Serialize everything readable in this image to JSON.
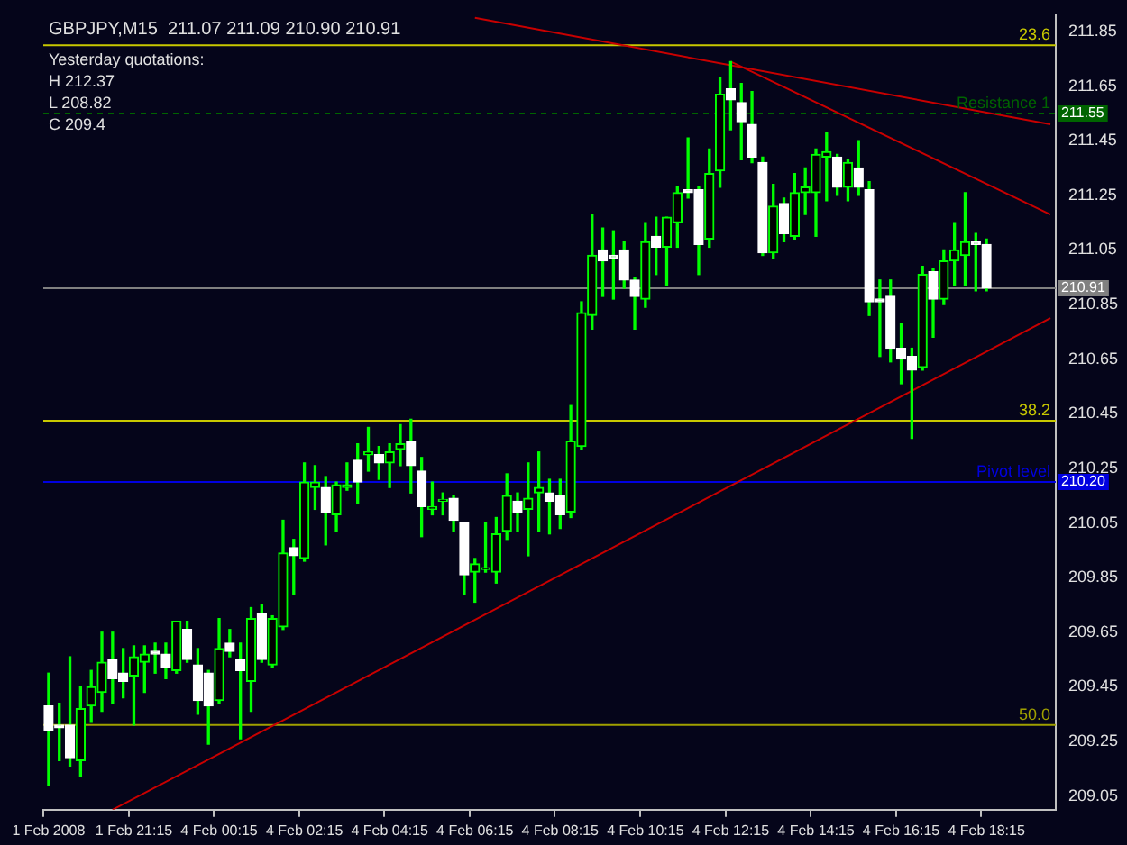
{
  "chart_data": {
    "type": "candlestick",
    "title": "GBPJPY,M15  211.07 211.09 210.90 210.91",
    "color": "#00ff00",
    "categories": [
      "1 Feb 2008",
      null,
      null,
      null,
      null,
      null,
      null,
      null,
      "1 Feb 21:15",
      null,
      null,
      null,
      null,
      null,
      null,
      null,
      "4 Feb 00:15",
      null,
      null,
      null,
      null,
      null,
      null,
      null,
      "4 Feb 02:15",
      null,
      null,
      null,
      null,
      null,
      null,
      null,
      "4 Feb 04:15",
      null,
      null,
      null,
      null,
      null,
      null,
      null,
      "4 Feb 06:15",
      null,
      null,
      null,
      null,
      null,
      null,
      null,
      "4 Feb 08:15",
      null,
      null,
      null,
      null,
      null,
      null,
      null,
      "4 Feb 10:15",
      null,
      null,
      null,
      null,
      null,
      null,
      null,
      "4 Feb 12:15",
      null,
      null,
      null,
      null,
      null,
      null,
      null,
      "4 Feb 14:15",
      null,
      null,
      null,
      null,
      null,
      null,
      null,
      "4 Feb 16:15",
      null,
      null,
      null,
      null,
      null,
      null,
      null,
      "4 Feb 18:15",
      null,
      null,
      null,
      null,
      null,
      null
    ],
    "ohlc": [
      [
        209.38,
        209.5,
        209.09,
        209.29
      ],
      [
        209.31,
        209.39,
        209.18,
        209.3
      ],
      [
        209.31,
        209.56,
        209.16,
        209.19
      ],
      [
        209.18,
        209.45,
        209.12,
        209.37
      ],
      [
        209.38,
        209.51,
        209.32,
        209.45
      ],
      [
        209.43,
        209.65,
        209.36,
        209.54
      ],
      [
        209.55,
        209.65,
        209.39,
        209.48
      ],
      [
        209.5,
        209.59,
        209.41,
        209.47
      ],
      [
        209.49,
        209.6,
        209.31,
        209.56
      ],
      [
        209.54,
        209.6,
        209.43,
        209.57
      ],
      [
        209.58,
        209.61,
        209.5,
        209.57
      ],
      [
        209.57,
        209.61,
        209.48,
        209.52
      ],
      [
        209.51,
        209.69,
        209.5,
        209.69
      ],
      [
        209.66,
        209.69,
        209.54,
        209.55
      ],
      [
        209.53,
        209.59,
        209.35,
        209.4
      ],
      [
        209.5,
        209.51,
        209.24,
        209.38
      ],
      [
        209.4,
        209.7,
        209.39,
        209.59
      ],
      [
        209.61,
        209.66,
        209.56,
        209.58
      ],
      [
        209.55,
        209.61,
        209.26,
        209.51
      ],
      [
        209.47,
        209.74,
        209.36,
        209.7
      ],
      [
        209.72,
        209.75,
        209.54,
        209.55
      ],
      [
        209.53,
        209.71,
        209.52,
        209.7
      ],
      [
        209.67,
        210.06,
        209.66,
        209.94
      ],
      [
        209.96,
        209.99,
        209.79,
        209.93
      ],
      [
        209.92,
        210.27,
        209.91,
        210.2
      ],
      [
        210.18,
        210.26,
        210.1,
        210.2
      ],
      [
        210.18,
        210.22,
        209.97,
        210.09
      ],
      [
        210.08,
        210.2,
        210.02,
        210.19
      ],
      [
        210.18,
        210.27,
        210.17,
        210.19
      ],
      [
        210.28,
        210.34,
        210.12,
        210.2
      ],
      [
        210.3,
        210.4,
        210.24,
        210.31
      ],
      [
        210.3,
        210.33,
        210.21,
        210.27
      ],
      [
        210.27,
        210.34,
        210.18,
        210.31
      ],
      [
        210.32,
        210.41,
        210.26,
        210.34
      ],
      [
        210.35,
        210.43,
        210.16,
        210.26
      ],
      [
        210.24,
        210.29,
        210.0,
        210.11
      ],
      [
        210.1,
        210.2,
        210.08,
        210.11
      ],
      [
        210.13,
        210.16,
        210.08,
        210.13
      ],
      [
        210.14,
        210.15,
        210.02,
        210.06
      ],
      [
        210.05,
        210.05,
        209.79,
        209.86
      ],
      [
        209.87,
        209.92,
        209.76,
        209.9
      ],
      [
        209.88,
        210.05,
        209.87,
        209.88
      ],
      [
        209.87,
        210.07,
        209.83,
        210.01
      ],
      [
        210.02,
        210.23,
        209.99,
        210.15
      ],
      [
        210.13,
        210.16,
        210.02,
        210.09
      ],
      [
        210.1,
        210.27,
        209.93,
        210.14
      ],
      [
        210.16,
        210.31,
        210.02,
        210.18
      ],
      [
        210.16,
        210.21,
        210.01,
        210.13
      ],
      [
        210.15,
        210.21,
        210.03,
        210.08
      ],
      [
        210.09,
        210.48,
        210.07,
        210.35
      ],
      [
        210.33,
        210.86,
        210.32,
        210.82
      ],
      [
        210.81,
        211.18,
        210.76,
        211.03
      ],
      [
        211.05,
        211.13,
        210.88,
        211.01
      ],
      [
        211.03,
        211.12,
        210.87,
        211.02
      ],
      [
        211.05,
        211.08,
        210.91,
        210.94
      ],
      [
        210.94,
        210.95,
        210.76,
        210.88
      ],
      [
        210.87,
        211.15,
        210.84,
        211.08
      ],
      [
        211.1,
        211.17,
        210.96,
        211.06
      ],
      [
        211.06,
        211.17,
        210.92,
        211.17
      ],
      [
        211.15,
        211.28,
        211.06,
        211.26
      ],
      [
        211.27,
        211.46,
        211.24,
        211.26
      ],
      [
        211.27,
        211.28,
        210.96,
        211.07
      ],
      [
        211.09,
        211.42,
        211.06,
        211.33
      ],
      [
        211.34,
        211.68,
        211.28,
        211.62
      ],
      [
        211.64,
        211.74,
        211.49,
        211.6
      ],
      [
        211.59,
        211.66,
        211.38,
        211.52
      ],
      [
        211.51,
        211.63,
        211.37,
        211.39
      ],
      [
        211.37,
        211.39,
        211.03,
        211.04
      ],
      [
        211.04,
        211.29,
        211.02,
        211.21
      ],
      [
        211.22,
        211.24,
        211.08,
        211.11
      ],
      [
        211.1,
        211.33,
        211.09,
        211.26
      ],
      [
        211.26,
        211.35,
        211.18,
        211.28
      ],
      [
        211.26,
        211.42,
        211.1,
        211.4
      ],
      [
        211.39,
        211.48,
        211.23,
        211.41
      ],
      [
        211.39,
        211.4,
        211.25,
        211.28
      ],
      [
        211.28,
        211.38,
        211.23,
        211.37
      ],
      [
        211.35,
        211.45,
        211.25,
        211.28
      ],
      [
        211.27,
        211.3,
        210.81,
        210.86
      ],
      [
        210.87,
        210.94,
        210.66,
        210.86
      ],
      [
        210.88,
        210.94,
        210.64,
        210.69
      ],
      [
        210.69,
        210.78,
        210.56,
        210.65
      ],
      [
        210.66,
        210.69,
        210.36,
        210.61
      ],
      [
        210.62,
        210.99,
        210.61,
        210.96
      ],
      [
        210.97,
        210.98,
        210.73,
        210.87
      ],
      [
        210.87,
        211.05,
        210.85,
        211.01
      ],
      [
        211.01,
        211.15,
        210.92,
        211.05
      ],
      [
        211.03,
        211.26,
        210.92,
        211.08
      ],
      [
        211.08,
        211.11,
        210.9,
        211.07
      ],
      [
        211.07,
        211.09,
        210.9,
        210.91
      ],
      null,
      null,
      null,
      null,
      null,
      null
    ],
    "colors": [
      "#ffffff",
      "#ffffff",
      "#ffffff",
      "#00ff00",
      "#00ff00",
      "#00ff00",
      "#ffffff",
      "#ffffff",
      "#00ff00",
      "#00ff00",
      "#ffffff",
      "#ffffff",
      "#00ff00",
      "#ffffff",
      "#ffffff",
      "#ffffff",
      "#00ff00",
      "#ffffff",
      "#ffffff",
      "#00ff00",
      "#ffffff",
      "#00ff00",
      "#00ff00",
      "#ffffff",
      "#00ff00",
      "#00ff00",
      "#ffffff",
      "#00ff00",
      "#00ff00",
      "#ffffff",
      "#00ff00",
      "#ffffff",
      "#00ff00",
      "#00ff00",
      "#ffffff",
      "#ffffff",
      "#00ff00",
      "#00ff00",
      "#ffffff",
      "#ffffff",
      "#00ff00",
      "#00ff00",
      "#00ff00",
      "#00ff00",
      "#ffffff",
      "#00ff00",
      "#00ff00",
      "#ffffff",
      "#ffffff",
      "#00ff00",
      "#00ff00",
      "#00ff00",
      "#ffffff",
      "#ffffff",
      "#ffffff",
      "#ffffff",
      "#00ff00",
      "#ffffff",
      "#00ff00",
      "#00ff00",
      "#ffffff",
      "#ffffff",
      "#00ff00",
      "#00ff00",
      "#ffffff",
      "#ffffff",
      "#ffffff",
      "#ffffff",
      "#00ff00",
      "#ffffff",
      "#00ff00",
      "#00ff00",
      "#00ff00",
      "#00ff00",
      "#ffffff",
      "#00ff00",
      "#ffffff",
      "#ffffff",
      "#ffffff",
      "#ffffff",
      "#ffffff",
      "#ffffff",
      "#00ff00",
      "#ffffff",
      "#00ff00",
      "#00ff00",
      "#00ff00",
      "#ffffff",
      "#ffffff",
      null,
      null,
      null,
      null,
      null,
      null
    ],
    "series": [
      {
        "type": "line",
        "color": "#c80000",
        "values": [
          null,
          null,
          null,
          null,
          null,
          null,
          null,
          null,
          null,
          null,
          null,
          null,
          null,
          null,
          null,
          null,
          null,
          null,
          null,
          null,
          null,
          null,
          null,
          null,
          null,
          null,
          null,
          null,
          null,
          null,
          null,
          null,
          null,
          null,
          null,
          null,
          null,
          null,
          null,
          null,
          211.9,
          null,
          null,
          null,
          null,
          null,
          null,
          null,
          null,
          null,
          null,
          null,
          null,
          null,
          null,
          null,
          null,
          null,
          null,
          null,
          null,
          null,
          null,
          null,
          null,
          null,
          null,
          null,
          null,
          null,
          null,
          null,
          null,
          null,
          null,
          null,
          null,
          null,
          null,
          null,
          null,
          null,
          null,
          null,
          null,
          null,
          null,
          null,
          null,
          null,
          null,
          null,
          null,
          null,
          211.51
        ]
      },
      {
        "type": "line",
        "color": "#c80000",
        "values": [
          null,
          null,
          null,
          null,
          null,
          null,
          null,
          null,
          null,
          null,
          null,
          null,
          null,
          null,
          null,
          null,
          null,
          null,
          null,
          null,
          null,
          null,
          null,
          null,
          null,
          null,
          null,
          null,
          null,
          null,
          null,
          null,
          null,
          null,
          null,
          null,
          null,
          null,
          null,
          null,
          null,
          null,
          null,
          null,
          null,
          null,
          null,
          null,
          null,
          null,
          null,
          null,
          null,
          null,
          null,
          null,
          null,
          null,
          null,
          null,
          null,
          null,
          null,
          null,
          211.74,
          null,
          null,
          null,
          null,
          null,
          null,
          null,
          null,
          null,
          null,
          null,
          null,
          null,
          null,
          null,
          null,
          null,
          null,
          null,
          null,
          null,
          null,
          null,
          null,
          null,
          null,
          null,
          null,
          null,
          211.18
        ]
      },
      {
        "type": "line",
        "color": "#c80000",
        "values": [
          null,
          null,
          null,
          null,
          null,
          null,
          209.0,
          null,
          null,
          null,
          null,
          null,
          null,
          null,
          null,
          null,
          null,
          null,
          null,
          null,
          null,
          null,
          null,
          null,
          null,
          null,
          null,
          null,
          null,
          null,
          null,
          null,
          null,
          null,
          null,
          null,
          null,
          null,
          null,
          null,
          null,
          null,
          null,
          null,
          null,
          null,
          null,
          null,
          null,
          null,
          null,
          null,
          null,
          null,
          null,
          null,
          null,
          null,
          null,
          null,
          null,
          null,
          null,
          null,
          null,
          null,
          null,
          null,
          null,
          null,
          null,
          null,
          null,
          null,
          null,
          null,
          null,
          null,
          null,
          null,
          null,
          null,
          null,
          null,
          null,
          null,
          null,
          null,
          null,
          null,
          null,
          null,
          null,
          null,
          210.8
        ]
      }
    ],
    "ylim": [
      209.0,
      211.91
    ],
    "yticks": [
      209.05,
      209.25,
      209.45,
      209.65,
      209.85,
      210.05,
      210.25,
      210.45,
      210.65,
      210.85,
      211.05,
      211.25,
      211.45,
      211.65,
      211.85
    ],
    "ref_lines": [
      {
        "axis": "y",
        "value": 211.8,
        "color": "#c8c800"
      },
      {
        "axis": "y",
        "value": 211.55,
        "label": "211.55",
        "color": "#006400",
        "line_style": "dashed"
      },
      {
        "axis": "y",
        "value": 210.91,
        "label": "210.91",
        "color": "#808080"
      },
      {
        "axis": "y",
        "value": 210.425,
        "color": "#c8c800"
      },
      {
        "axis": "y",
        "value": 210.2,
        "label": "210.20",
        "color": "#0000e0"
      },
      {
        "axis": "y",
        "value": 209.31,
        "color": "#a0a000"
      }
    ],
    "annotations": [
      "Yesterday quotations:",
      "H 212.37",
      "L 208.82",
      "C 209.4",
      {
        "text": "23.6",
        "y": 211.8
      },
      {
        "text": "Resistance 1",
        "y": 211.55
      },
      {
        "text": "38.2",
        "y": 210.425
      },
      {
        "text": "Pivot level",
        "y": 210.2
      },
      {
        "text": "50.0",
        "y": 209.31
      }
    ]
  }
}
